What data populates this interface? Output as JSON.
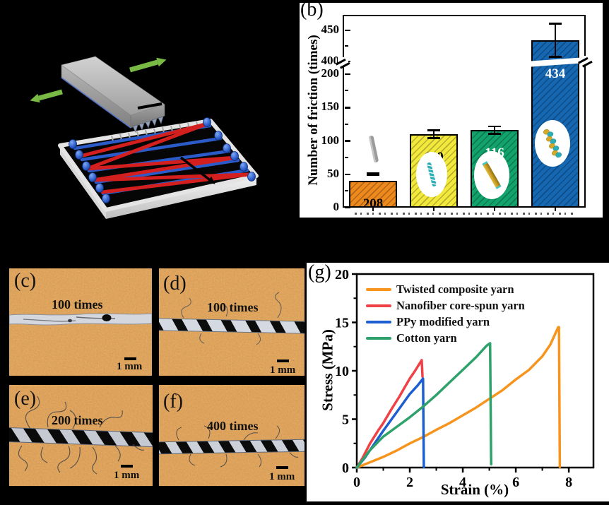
{
  "panel_a": {
    "green_arrow_color": "#79BA45",
    "block_gray": "#A8A8A8",
    "plate_rim_color": "#E4E4E4",
    "peg_color": "#2B5BC8",
    "yarn_blue": "#2B5BC8",
    "yarn_red": "#D41F1F"
  },
  "panel_b": {
    "label": "(b)",
    "chart_data": {
      "type": "bar",
      "ylabel": "Number of friction (times)",
      "y_ticks_lower": [
        0,
        50,
        100,
        150,
        200
      ],
      "y_ticks_upper": [
        400,
        450
      ],
      "y_minor_lower": [
        25,
        75,
        125,
        175
      ],
      "y_minor_upper": [
        425
      ],
      "axis_break": {
        "lower_max": 200,
        "upper_min": 400
      },
      "x_tick_labels_cropped": true,
      "bars": [
        {
          "value": 208,
          "error": 11,
          "value_label": "208",
          "value_label_color": "#000000",
          "color": "#EE8A1D",
          "icon": "plain-gray-yarn"
        },
        {
          "value": 110,
          "error": 7,
          "value_label": "110",
          "value_label_color": "#000000",
          "color": "#F2E93C",
          "icon": "teal-striped-yarn"
        },
        {
          "value": 116,
          "error": 7,
          "value_label": "116",
          "value_label_color": "#FFFFFF",
          "color": "#12A26B",
          "icon": "gold-yarn"
        },
        {
          "value": 434,
          "error": 28,
          "value_label": "434",
          "value_label_color": "#FFFFFF",
          "color": "#1567B2",
          "icon": "twisted-gold-teal-yarn"
        }
      ]
    }
  },
  "micro_panels": [
    {
      "label": "(c)",
      "times_label": "100 times",
      "scale_label": "1 mm",
      "yarn_style": "smooth-white"
    },
    {
      "label": "(d)",
      "times_label": "100 times",
      "scale_label": "1 mm",
      "yarn_style": "twisted-black-white"
    },
    {
      "label": "(e)",
      "times_label": "200 times",
      "scale_label": "1 mm",
      "yarn_style": "twisted-frayed"
    },
    {
      "label": "(f)",
      "times_label": "400 times",
      "scale_label": "1 mm",
      "yarn_style": "twisted-frayed"
    }
  ],
  "panel_g": {
    "label": "(g)",
    "chart_data": {
      "type": "line",
      "xlabel": "Strain (%)",
      "ylabel": "Stress (MPa)",
      "xlim": [
        0,
        8.93
      ],
      "ylim": [
        0,
        20
      ],
      "x_ticks": [
        0,
        2,
        4,
        6,
        8
      ],
      "x_minor": [
        1,
        3,
        5,
        7
      ],
      "y_ticks": [
        0,
        5,
        10,
        15,
        20
      ],
      "y_minor": [
        2.5,
        7.5,
        12.5,
        17.5
      ],
      "grid": false,
      "legend_position": "top-left",
      "series": [
        {
          "name": "Twisted composite yarn",
          "color": "#F7941E",
          "points": [
            [
              0,
              0
            ],
            [
              0.5,
              0.55
            ],
            [
              1,
              1.1
            ],
            [
              1.5,
              1.75
            ],
            [
              2,
              2.5
            ],
            [
              2.5,
              3.15
            ],
            [
              3,
              3.9
            ],
            [
              3.5,
              4.6
            ],
            [
              4,
              5.4
            ],
            [
              4.5,
              6.2
            ],
            [
              5,
              7.1
            ],
            [
              5.5,
              8.0
            ],
            [
              6,
              9.1
            ],
            [
              6.5,
              10.1
            ],
            [
              7,
              11.5
            ],
            [
              7.3,
              12.7
            ],
            [
              7.6,
              14.5
            ],
            [
              7.63,
              14.5
            ],
            [
              7.66,
              0.05
            ]
          ]
        },
        {
          "name": "Nanofiber core-spun yarn",
          "color": "#EF4146",
          "points": [
            [
              0,
              0
            ],
            [
              0.2,
              0.9
            ],
            [
              0.5,
              2.5
            ],
            [
              0.8,
              3.8
            ],
            [
              1,
              4.6
            ],
            [
              1.3,
              6.0
            ],
            [
              1.6,
              7.3
            ],
            [
              2,
              9.2
            ],
            [
              2.2,
              10.0
            ],
            [
              2.45,
              11.1
            ],
            [
              2.48,
              9.4
            ]
          ]
        },
        {
          "name": "PPy modified yarn",
          "color": "#1D5FD1",
          "points": [
            [
              0,
              0
            ],
            [
              0.3,
              1.0
            ],
            [
              0.6,
              2.2
            ],
            [
              1,
              3.8
            ],
            [
              1.5,
              5.7
            ],
            [
              2,
              7.6
            ],
            [
              2.3,
              8.5
            ],
            [
              2.5,
              9.2
            ],
            [
              2.53,
              0.05
            ]
          ]
        },
        {
          "name": "Cotton yarn",
          "color": "#2FA26B",
          "points": [
            [
              0,
              0
            ],
            [
              0.5,
              1.8
            ],
            [
              1,
              3.2
            ],
            [
              1.5,
              4.2
            ],
            [
              2,
              5.2
            ],
            [
              2.5,
              6.3
            ],
            [
              3,
              7.5
            ],
            [
              3.5,
              8.8
            ],
            [
              4,
              10.1
            ],
            [
              4.5,
              11.4
            ],
            [
              4.9,
              12.6
            ],
            [
              5.03,
              12.85
            ],
            [
              5.07,
              0.35
            ]
          ]
        }
      ]
    }
  }
}
